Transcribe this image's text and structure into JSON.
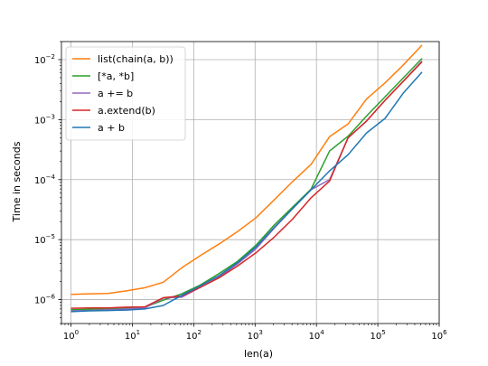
{
  "chart_data": {
    "type": "line",
    "xlabel": "len(a)",
    "ylabel": "Time in seconds",
    "x_scale": "log",
    "y_scale": "log",
    "xlim": [
      0.7,
      1000000
    ],
    "ylim": [
      4e-07,
      0.02
    ],
    "grid": true,
    "legend_position": "top-left",
    "x_ticks": [
      {
        "base": "10",
        "exp": "0",
        "value": 1
      },
      {
        "base": "10",
        "exp": "1",
        "value": 10
      },
      {
        "base": "10",
        "exp": "2",
        "value": 100
      },
      {
        "base": "10",
        "exp": "3",
        "value": 1000
      },
      {
        "base": "10",
        "exp": "4",
        "value": 10000
      },
      {
        "base": "10",
        "exp": "5",
        "value": 100000
      },
      {
        "base": "10",
        "exp": "6",
        "value": 1000000
      }
    ],
    "y_ticks": [
      {
        "base": "10",
        "exp": "−6",
        "value": 1e-06
      },
      {
        "base": "10",
        "exp": "−5",
        "value": 1e-05
      },
      {
        "base": "10",
        "exp": "−4",
        "value": 0.0001
      },
      {
        "base": "10",
        "exp": "−3",
        "value": 0.001
      },
      {
        "base": "10",
        "exp": "−2",
        "value": 0.01
      }
    ],
    "x": [
      1,
      2,
      4,
      8,
      16,
      32,
      64,
      128,
      256,
      512,
      1024,
      2048,
      4096,
      8192,
      16384,
      32768,
      65536,
      131072,
      262144,
      524288
    ],
    "series": [
      {
        "name": "list(chain(a, b))",
        "color": "#ff7f0e",
        "values": [
          1.22e-06,
          1.25e-06,
          1.27e-06,
          1.4e-06,
          1.58e-06,
          1.95e-06,
          3.4e-06,
          5.4e-06,
          8.4e-06,
          1.35e-05,
          2.3e-05,
          4.6e-05,
          9.3e-05,
          0.00018,
          0.00052,
          0.00085,
          0.0022,
          0.0041,
          0.0082,
          0.0175
        ]
      },
      {
        "name": "[*a, *b]",
        "color": "#2ca02c",
        "values": [
          6.8e-07,
          6.9e-07,
          7.1e-07,
          7.2e-07,
          7.5e-07,
          9.8e-07,
          1.25e-06,
          1.75e-06,
          2.7e-06,
          4.3e-06,
          8e-06,
          1.75e-05,
          3.5e-05,
          7e-05,
          0.0003,
          0.00053,
          0.00115,
          0.0024,
          0.005,
          0.0105
        ]
      },
      {
        "name": "a += b",
        "color": "#9467bd",
        "values": [
          6.5e-07,
          6.6e-07,
          6.8e-07,
          7e-07,
          7.3e-07,
          1.06e-06,
          1.1e-06,
          1.6e-06,
          2.35e-06,
          3.9e-06,
          7e-06,
          1.55e-05,
          3.3e-05,
          6.8e-05,
          0.0001,
          0.0005,
          0.00095,
          0.0021,
          0.0044,
          0.0095
        ]
      },
      {
        "name": "a.extend(b)",
        "color": "#d62728",
        "values": [
          7.2e-07,
          7.3e-07,
          7.3e-07,
          7.5e-07,
          7.6e-07,
          1.08e-06,
          1.15e-06,
          1.6e-06,
          2.3e-06,
          3.6e-06,
          6e-06,
          1.1e-05,
          2.2e-05,
          5e-05,
          9.5e-05,
          0.0005,
          0.00095,
          0.0021,
          0.0044,
          0.0092
        ]
      },
      {
        "name": "a + b",
        "color": "#1f77b4",
        "values": [
          6.3e-07,
          6.5e-07,
          6.6e-07,
          6.7e-07,
          7e-07,
          8e-07,
          1.18e-06,
          1.7e-06,
          2.5e-06,
          4.1e-06,
          7.5e-06,
          1.6e-05,
          3.3e-05,
          6.8e-05,
          0.00014,
          0.00026,
          0.0006,
          0.00105,
          0.0028,
          0.0062
        ]
      }
    ]
  }
}
